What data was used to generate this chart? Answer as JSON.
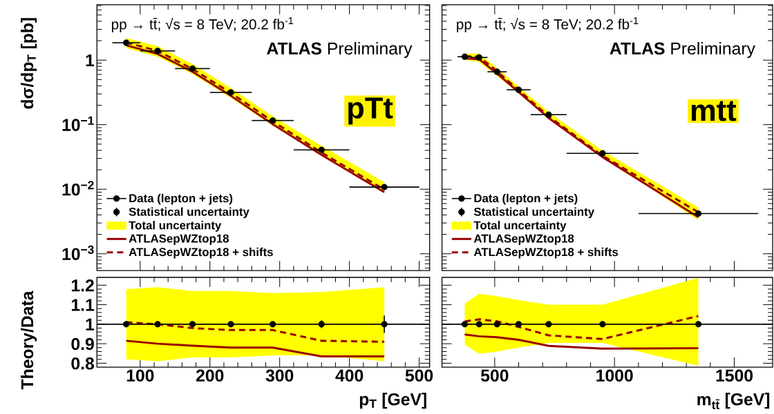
{
  "chart_data": [
    {
      "type": "scatter",
      "ylabel": "dσ/dp$_{T}$ [pb]",
      "xlim": [
        38,
        515
      ],
      "xticks": [
        100,
        200,
        300,
        400,
        500
      ],
      "ylim": [
        0.00055,
        7.2
      ],
      "log": true,
      "yticks": [
        {
          "value": 1,
          "label": "1"
        },
        {
          "value": 0.1,
          "label": "10$^{−1}$"
        },
        {
          "value": 0.01,
          "label": "10$^{−2}$"
        },
        {
          "value": 0.001,
          "label": "10$^{−3}$"
        }
      ],
      "tick_labels": "y",
      "legend": "bottom left",
      "x": [
        80,
        125,
        175,
        230,
        290,
        360,
        450
      ],
      "annotations": [
        "pp → tt̄; √s = 8 TeV; 20.2 fb$^{-1}$",
        "**ATLAS** Preliminary",
        "pTt",
        "Statistical uncertainty"
      ],
      "series": [
        {
          "name": "Data (lepton + jets)",
          "marker": "circle",
          "color": "#000000",
          "values": [
            1.86,
            1.39,
            0.74,
            0.316,
            0.116,
            0.0407,
            0.0108
          ],
          "xerrors": [
            20,
            25,
            25,
            30,
            30,
            40,
            50
          ]
        },
        {
          "name": "Total uncertainty",
          "type": "line",
          "marker": "none",
          "color": "#ffff00",
          "values": [
            null,
            null,
            null,
            null,
            null,
            null,
            null
          ],
          "lower": [
            1.53,
            1.13,
            0.61,
            0.26,
            0.097,
            0.034,
            0.0087
          ],
          "upper": [
            2.2,
            1.65,
            0.87,
            0.37,
            0.135,
            0.047,
            0.0129
          ]
        },
        {
          "name": "ATLASepWZtop18",
          "type": "line",
          "marker": "none",
          "color": "#990000",
          "line_style": "solid",
          "values": [
            1.7,
            1.25,
            0.66,
            0.28,
            0.102,
            0.034,
            0.009
          ]
        },
        {
          "name": "ATLASepWZtop18 + shifts",
          "type": "line",
          "marker": "none",
          "color": "#990000",
          "line_style": "dashed",
          "values": [
            1.88,
            1.39,
            0.73,
            0.31,
            0.113,
            0.037,
            0.0099
          ]
        }
      ]
    },
    {
      "type": "scatter",
      "xlim": [
        280,
        1660
      ],
      "xticks": [
        500,
        1000,
        1500
      ],
      "ylim": [
        0.00055,
        7.2
      ],
      "log": true,
      "yticks": [
        1,
        0.1,
        0.01,
        0.001
      ],
      "tick_labels": false,
      "legend": "bottom left",
      "x": [
        375,
        435,
        510,
        600,
        725,
        950,
        1350
      ],
      "annotations": [
        "pp → tt̄; √s = 8 TeV; 20.2 fb$^{-1}$",
        "**ATLAS** Preliminary",
        "mtt",
        "Statistical uncertainty"
      ],
      "series": [
        {
          "name": "Data (lepton + jets)",
          "marker": "circle",
          "color": "#000000",
          "values": [
            1.13,
            1.1,
            0.66,
            0.347,
            0.143,
            0.036,
            0.0042
          ],
          "xerrors": [
            30,
            35,
            40,
            50,
            75,
            150,
            250
          ]
        },
        {
          "name": "Total uncertainty",
          "type": "line",
          "marker": "none",
          "color": "#ffff00",
          "values": [
            null,
            null,
            null,
            null,
            null,
            null,
            null
          ],
          "lower": [
            1.01,
            0.93,
            0.57,
            0.305,
            0.129,
            0.0325,
            0.0033
          ],
          "upper": [
            1.25,
            1.27,
            0.755,
            0.39,
            0.157,
            0.0396,
            0.0052
          ]
        },
        {
          "name": "ATLASepWZtop18",
          "type": "line",
          "marker": "none",
          "color": "#990000",
          "line_style": "solid",
          "values": [
            1.07,
            1.03,
            0.62,
            0.32,
            0.127,
            0.0315,
            0.0037
          ]
        },
        {
          "name": "ATLASepWZtop18 + shifts",
          "type": "line",
          "marker": "none",
          "color": "#990000",
          "line_style": "dashed",
          "values": [
            1.15,
            1.13,
            0.67,
            0.342,
            0.135,
            0.033,
            0.0044
          ]
        }
      ]
    },
    {
      "type": "scatter",
      "xlabel": "p$_{T}$ [GeV]",
      "ylabel": "Theory/Data",
      "xlim": [
        38,
        515
      ],
      "xticks": [
        100,
        200,
        300,
        400,
        500
      ],
      "ylim": [
        0.78,
        1.24
      ],
      "yticks": [
        0.8,
        0.9,
        1,
        1.1,
        1.2
      ],
      "x": [
        80,
        125,
        175,
        230,
        290,
        360,
        450
      ],
      "ref_lines": [
        {
          "axis": "y",
          "value": 1,
          "color": "#000000"
        }
      ],
      "series": [
        {
          "marker": "circle",
          "color": "#000000",
          "values": [
            1,
            1,
            1,
            1,
            1,
            1,
            1
          ],
          "errors": [
            null,
            null,
            null,
            null,
            null,
            0.02,
            0.045
          ]
        },
        {
          "type": "line",
          "marker": "none",
          "color": "#ffff00",
          "values": [
            null,
            null,
            null,
            null,
            null,
            null,
            null
          ],
          "lower": [
            0.82,
            0.81,
            0.83,
            0.83,
            0.84,
            0.84,
            0.81
          ],
          "upper": [
            1.18,
            1.19,
            1.17,
            1.17,
            1.16,
            1.165,
            1.19
          ]
        },
        {
          "type": "line",
          "marker": "none",
          "color": "#990000",
          "line_style": "solid",
          "values": [
            0.915,
            0.9,
            0.89,
            0.88,
            0.88,
            0.835,
            0.835
          ]
        },
        {
          "type": "line",
          "marker": "none",
          "color": "#990000",
          "line_style": "dashed",
          "values": [
            1.01,
            1.0,
            0.98,
            0.97,
            0.97,
            0.915,
            0.91
          ]
        }
      ]
    },
    {
      "type": "scatter",
      "xlabel": "m$_{tt̄}$ [GeV]",
      "xlim": [
        280,
        1660
      ],
      "xticks": [
        500,
        1000,
        1500
      ],
      "ylim": [
        0.78,
        1.24
      ],
      "yticks": [
        0.8,
        0.9,
        1,
        1.1,
        1.2
      ],
      "tick_labels": "x",
      "x": [
        375,
        435,
        510,
        600,
        725,
        950,
        1350
      ],
      "ref_lines": [
        {
          "axis": "y",
          "value": 1,
          "color": "#000000"
        }
      ],
      "series": [
        {
          "marker": "circle",
          "color": "#000000",
          "values": [
            1,
            1,
            1,
            1,
            1,
            1,
            1
          ],
          "errors": [
            null,
            null,
            null,
            null,
            null,
            null,
            0.015
          ]
        },
        {
          "type": "line",
          "marker": "none",
          "color": "#ffff00",
          "values": [
            null,
            null,
            null,
            null,
            null,
            null,
            null
          ],
          "lower": [
            0.895,
            0.848,
            0.86,
            0.88,
            0.904,
            0.904,
            0.787
          ],
          "upper": [
            1.106,
            1.156,
            1.144,
            1.123,
            1.1,
            1.1,
            1.237
          ]
        },
        {
          "type": "line",
          "marker": "none",
          "color": "#990000",
          "line_style": "solid",
          "values": [
            0.947,
            0.938,
            0.933,
            0.92,
            0.889,
            0.875,
            0.877
          ]
        },
        {
          "type": "line",
          "marker": "none",
          "color": "#990000",
          "line_style": "dashed",
          "values": [
            1.014,
            1.025,
            1.015,
            0.986,
            0.943,
            0.924,
            1.042
          ]
        }
      ]
    }
  ]
}
